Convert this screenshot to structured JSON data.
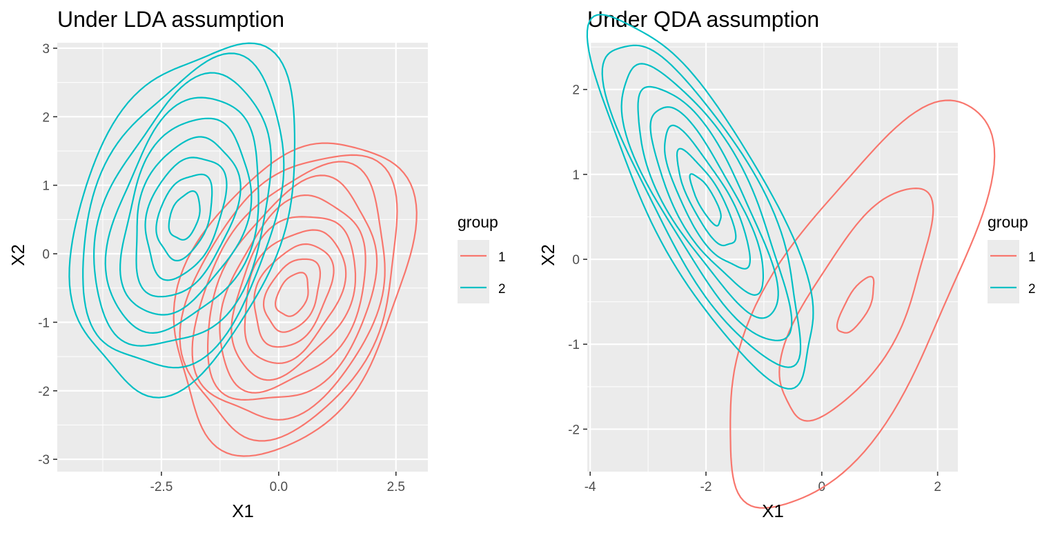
{
  "legend_title": "group",
  "chart_data": [
    {
      "type": "contour",
      "title": "Under LDA assumption",
      "xlabel": "X1",
      "ylabel": "X2",
      "xlim": [
        -4.72,
        3.18
      ],
      "ylim": [
        -3.18,
        3.08
      ],
      "x_ticks": [
        -2.5,
        0.0,
        2.5
      ],
      "x_tick_labels": [
        "-2.5",
        "0.0",
        "2.5"
      ],
      "y_ticks": [
        -3,
        -2,
        -1,
        0,
        1,
        2,
        3
      ],
      "y_tick_labels": [
        "-3",
        "-2",
        "-1",
        "0",
        "1",
        "2",
        "3"
      ],
      "grid": true,
      "legend": {
        "title": "group",
        "position": "right",
        "entries": [
          "1",
          "2"
        ]
      },
      "series": [
        {
          "name": "1",
          "color": "#F8766D",
          "center": [
            0.3,
            -0.6
          ],
          "sd": [
            1.05,
            0.95
          ],
          "rho": 0.35,
          "levels": 10
        },
        {
          "name": "2",
          "color": "#00BFC4",
          "center": [
            -2.0,
            0.55
          ],
          "sd": [
            1.0,
            1.05
          ],
          "rho": 0.35,
          "levels": 9
        }
      ]
    },
    {
      "type": "contour",
      "title": "Under QDA assumption",
      "xlabel": "X1",
      "ylabel": "X2",
      "xlim": [
        -4.05,
        2.35
      ],
      "ylim": [
        -2.5,
        2.55
      ],
      "x_ticks": [
        -4,
        -2,
        0,
        2
      ],
      "x_tick_labels": [
        "-4",
        "-2",
        "0",
        "2"
      ],
      "y_ticks": [
        -2,
        -1,
        0,
        1,
        2
      ],
      "y_tick_labels": [
        "-2",
        "-1",
        "0",
        "1",
        "2"
      ],
      "grid": true,
      "legend": {
        "title": "group",
        "position": "right",
        "entries": [
          "1",
          "2"
        ]
      },
      "series": [
        {
          "name": "1",
          "color": "#F8766D",
          "center": [
            0.6,
            -0.55
          ],
          "sd": [
            0.95,
            1.0
          ],
          "rho": 0.7,
          "levels": 3
        },
        {
          "name": "2",
          "color": "#00BFC4",
          "center": [
            -2.0,
            0.7
          ],
          "sd": [
            0.8,
            0.9
          ],
          "rho": -0.8,
          "levels": 8
        }
      ]
    }
  ]
}
